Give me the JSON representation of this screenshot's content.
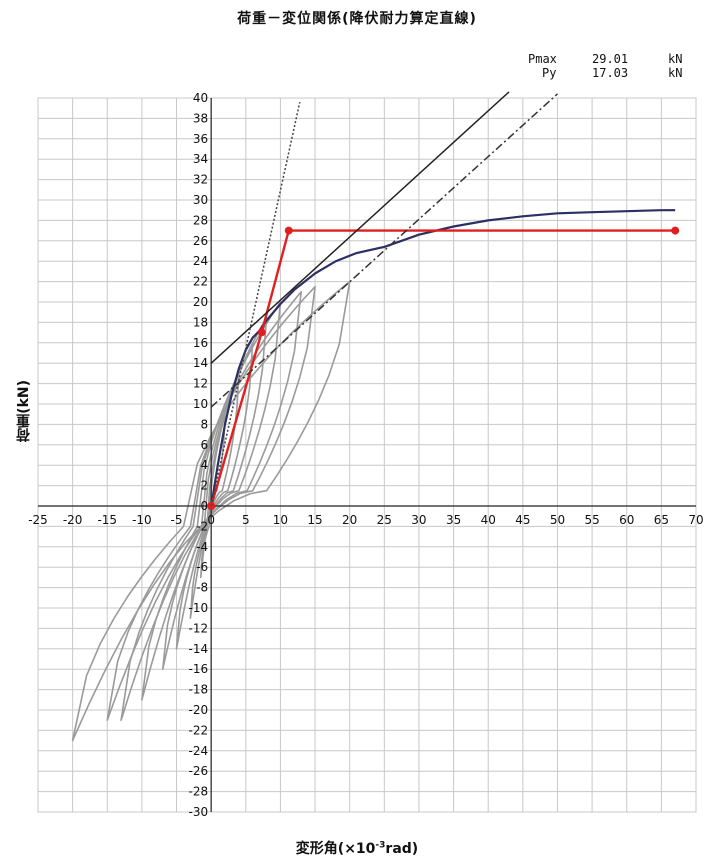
{
  "chart_data": {
    "type": "line",
    "title": "荷重－変位関係(降伏耐力算定直線)",
    "xlabel": "変形角(×10",
    "xlabel_sup": "-3",
    "xlabel_tail": "rad)",
    "ylabel": "荷重(kN)",
    "xlim": [
      -25,
      70
    ],
    "ylim": [
      -30,
      40
    ],
    "x_ticks": [
      -25,
      -20,
      -15,
      -10,
      -5,
      0,
      5,
      10,
      15,
      20,
      25,
      30,
      35,
      40,
      45,
      50,
      55,
      60,
      65,
      70
    ],
    "y_ticks": [
      -30,
      -28,
      -26,
      -24,
      -22,
      -20,
      -18,
      -16,
      -14,
      -12,
      -10,
      -8,
      -6,
      -4,
      -2,
      0,
      2,
      4,
      6,
      8,
      10,
      12,
      14,
      16,
      18,
      20,
      22,
      24,
      26,
      28,
      30,
      32,
      34,
      36,
      38,
      40
    ],
    "grid": true,
    "stats": [
      {
        "label": "Pmax",
        "value": "29.01",
        "unit": "kN"
      },
      {
        "label": "Py",
        "value": "17.03",
        "unit": "kN"
      }
    ],
    "series": [
      {
        "style": "envelope",
        "color": "#2b2f63",
        "x": [
          0,
          1,
          2,
          3,
          4,
          5,
          6,
          7,
          8,
          10,
          12,
          15,
          18,
          21,
          25,
          30,
          35,
          40,
          45,
          50,
          55,
          60,
          65,
          67
        ],
        "y": [
          0,
          4.2,
          8,
          11,
          13.5,
          15.3,
          16.5,
          17.2,
          18.2,
          19.8,
          21.2,
          22.8,
          24,
          24.8,
          25.4,
          26.6,
          27.4,
          28,
          28.4,
          28.7,
          28.8,
          28.9,
          29,
          29
        ]
      },
      {
        "style": "bilinear",
        "color": "#e02020",
        "x": [
          0,
          7.3,
          11.2,
          67
        ],
        "y": [
          0,
          17.03,
          27.0,
          27.0
        ]
      },
      {
        "style": "line-solid",
        "color": "#222222",
        "x": [
          0,
          43
        ],
        "y": [
          14,
          40.6
        ]
      },
      {
        "style": "line-dashdot",
        "color": "#333333",
        "x": [
          0,
          50
        ],
        "y": [
          9.7,
          40.4
        ]
      },
      {
        "style": "line-dotted",
        "color": "#444444",
        "x": [
          0,
          12.8
        ],
        "y": [
          0,
          39.6
        ]
      }
    ]
  }
}
